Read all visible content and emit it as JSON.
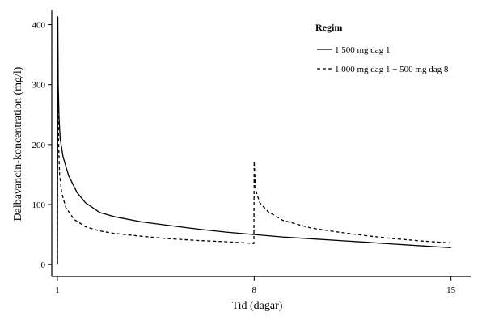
{
  "chart_data": {
    "type": "line",
    "title": "",
    "xlabel": "Tid (dagar)",
    "ylabel": "Dalbavancin-koncentration (mg/l)",
    "xlim": [
      0.8,
      15.7
    ],
    "ylim": [
      -20,
      425
    ],
    "x_ticks": [
      1,
      8,
      15
    ],
    "y_ticks": [
      0,
      100,
      200,
      300,
      400
    ],
    "grid": false,
    "legend": {
      "title": "Regim",
      "position": "top-right"
    },
    "series": [
      {
        "name": "1 500 mg dag 1",
        "style": "solid",
        "x": [
          1.0,
          1.015,
          1.03,
          1.06,
          1.1,
          1.2,
          1.4,
          1.7,
          2.0,
          2.5,
          3.0,
          4.0,
          5.0,
          6.0,
          7.0,
          8.0,
          9.0,
          10.0,
          11.0,
          12.0,
          13.0,
          14.0,
          15.0
        ],
        "y": [
          0,
          413,
          300,
          245,
          210,
          180,
          148,
          120,
          103,
          87,
          80,
          71,
          65,
          59,
          54,
          50,
          46,
          43,
          40,
          37,
          34,
          31,
          28
        ]
      },
      {
        "name": "1 000 mg dag 1 + 500 mg dag 8",
        "style": "dashed",
        "x": [
          1.0,
          1.01,
          1.025,
          1.05,
          1.08,
          1.15,
          1.3,
          1.6,
          2.0,
          2.5,
          3.0,
          4.0,
          5.0,
          6.0,
          7.0,
          7.99,
          8.0,
          8.05,
          8.2,
          8.5,
          9.0,
          10.0,
          11.0,
          12.0,
          13.0,
          14.0,
          15.0
        ],
        "y": [
          0,
          360,
          270,
          190,
          150,
          120,
          95,
          75,
          63,
          56,
          52,
          47,
          43,
          40,
          38,
          35,
          172,
          125,
          103,
          88,
          74,
          61,
          54,
          48,
          43,
          39,
          36
        ]
      }
    ]
  }
}
